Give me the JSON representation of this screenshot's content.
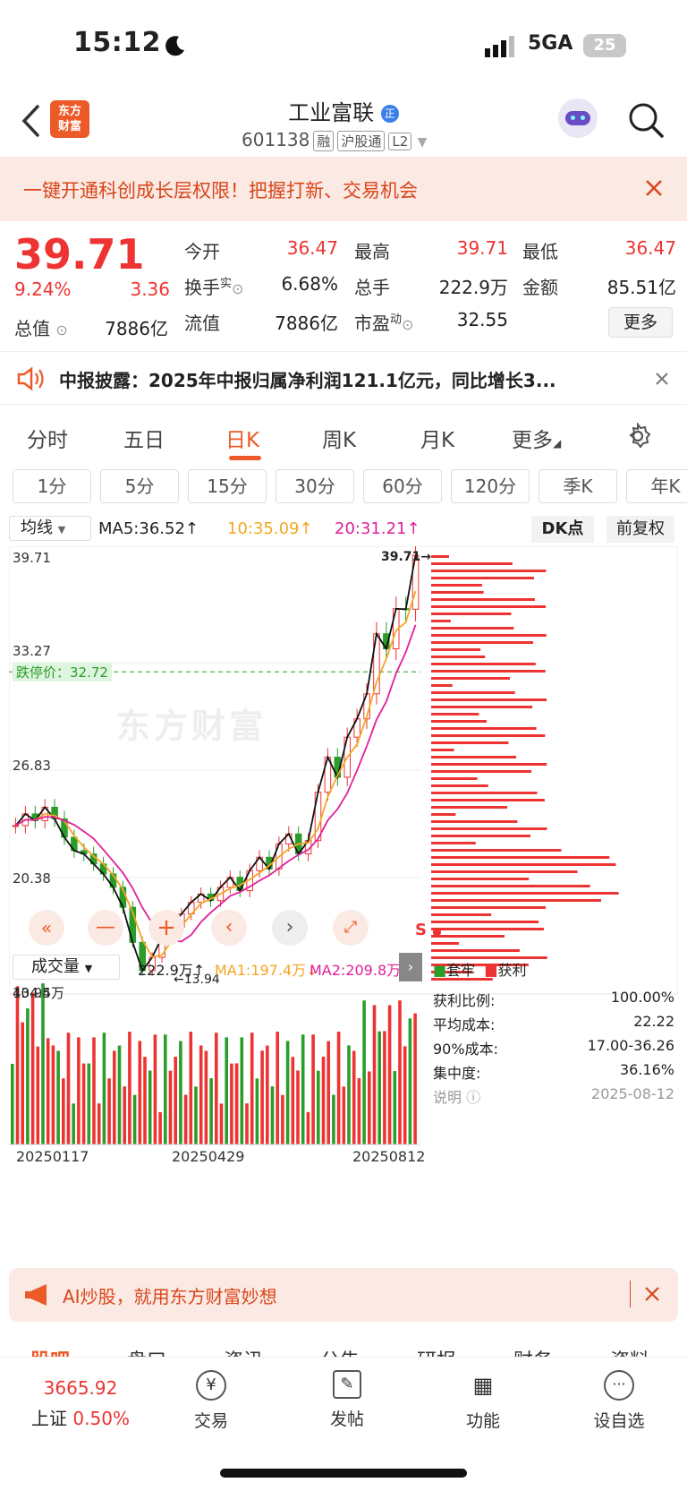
{
  "status": {
    "time": "15:12",
    "network": "5GA",
    "battery": "25"
  },
  "header": {
    "logo_line1": "东方",
    "logo_line2": "财富",
    "title": "工业富联",
    "code": "601138",
    "tags": [
      "融",
      "沪股通",
      "L2"
    ]
  },
  "promo": {
    "text": "一键开通科创成长层权限！把握打新、交易机会"
  },
  "quote": {
    "price": "39.71",
    "change_pct": "9.24%",
    "change": "3.36",
    "open_label": "今开",
    "open": "36.47",
    "high_label": "最高",
    "high": "39.71",
    "low_label": "最低",
    "low": "36.47",
    "turnover_label": "换手",
    "turnover_sup": "实",
    "turnover": "6.68%",
    "vol_label": "总手",
    "vol": "222.9万",
    "amount_label": "金额",
    "amount": "85.51亿",
    "mcap_label": "总值",
    "mcap": "7886亿",
    "float_label": "流值",
    "float": "7886亿",
    "pe_label": "市盈",
    "pe_sup": "动",
    "pe": "32.55",
    "more": "更多"
  },
  "notice": {
    "text": "中报披露：2025年中报归属净利润121.1亿元，同比增长3..."
  },
  "tabs": [
    "分时",
    "五日",
    "日K",
    "周K",
    "月K",
    "更多"
  ],
  "periods": [
    "1分",
    "5分",
    "15分",
    "30分",
    "60分",
    "120分",
    "季K",
    "年K"
  ],
  "ma_bar": {
    "selector": "均线",
    "ma5": "MA5:36.52↑",
    "ma10": "10:35.09↑",
    "ma20": "20:31.21↑",
    "dk": "DK点",
    "fq": "前复权",
    "c_ma10": "#f5a623",
    "c_ma20": "#e0209a"
  },
  "kline": {
    "y_labels": [
      "39.71",
      "33.27",
      "26.83",
      "20.38",
      "13.94"
    ],
    "limit_label": "跌停价：32.72",
    "max_label": "39.71",
    "min_label": "13.94",
    "watermark": "东方财富"
  },
  "volume": {
    "selector": "成交量",
    "vol": "222.9万↑",
    "ma1": "MA1:197.4万↓",
    "ma2": "MA2:209.8万",
    "max": "404.5万",
    "dates": [
      "20250117",
      "20250429",
      "20250812"
    ]
  },
  "chips": {
    "legend_a": "套牢",
    "legend_b": "获利",
    "rows": [
      {
        "k": "获利比例:",
        "v": "100.00%"
      },
      {
        "k": "平均成本:",
        "v": "22.22"
      },
      {
        "k": "90%成本:",
        "v": "17.00-36.26"
      },
      {
        "k": "集中度:",
        "v": "36.16%"
      }
    ],
    "note": "说明",
    "date": "2025-08-12"
  },
  "ai_banner": {
    "text": "AI炒股，就用东方财富妙想"
  },
  "sub_tabs": [
    "股吧",
    "盘口",
    "资讯",
    "公告",
    "研报",
    "财务",
    "资料"
  ],
  "bottom_nav": {
    "index_value": "3665.92",
    "index_name": "上证",
    "index_pct": "0.50%",
    "items": [
      "交易",
      "发帖",
      "功能",
      "设自选"
    ]
  },
  "chart_data": {
    "type": "candlestick",
    "y_range": [
      13.94,
      39.71
    ],
    "last": 39.71,
    "x_ticks": [
      "20250117",
      "20250429",
      "20250812"
    ],
    "close_series": [
      23.5,
      24.2,
      23.8,
      24.6,
      23.9,
      22.8,
      22.0,
      21.8,
      21.2,
      20.6,
      19.8,
      18.6,
      16.5,
      14.8,
      15.6,
      16.8,
      17.4,
      18.2,
      18.9,
      19.4,
      19.0,
      19.8,
      20.4,
      19.6,
      20.8,
      21.6,
      20.9,
      22.4,
      23.0,
      21.8,
      22.6,
      25.5,
      27.6,
      26.4,
      28.8,
      29.9,
      31.4,
      35.0,
      34.1,
      36.5,
      36.47,
      39.71
    ]
  }
}
